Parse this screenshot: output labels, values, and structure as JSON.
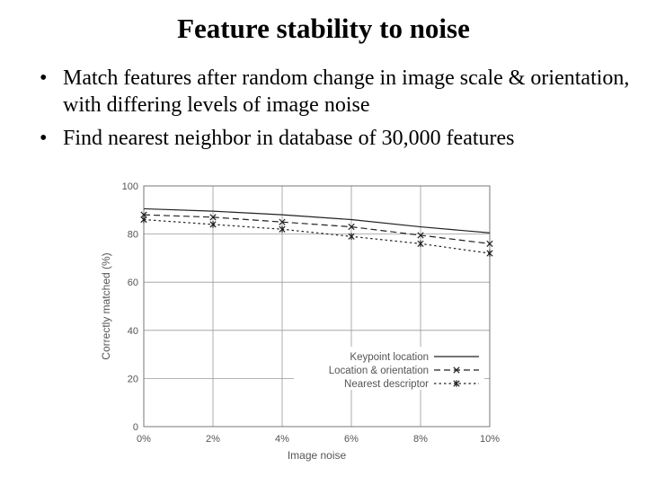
{
  "slide": {
    "title": "Feature stability to noise",
    "bullets": [
      "Match features after random change in image scale & orientation, with differing levels of image noise",
      "Find nearest neighbor in database of 30,000 features"
    ]
  },
  "chart_data": {
    "type": "line",
    "x": [
      0,
      2,
      4,
      6,
      8,
      10
    ],
    "x_tick_labels": [
      "0%",
      "2%",
      "4%",
      "6%",
      "8%",
      "10%"
    ],
    "y_ticks": [
      0,
      20,
      40,
      60,
      80,
      100
    ],
    "xlabel": "Image noise",
    "ylabel": "Correctly matched (%)",
    "xlim": [
      0,
      10
    ],
    "ylim": [
      0,
      100
    ],
    "grid": true,
    "legend_position": "bottom-right",
    "series": [
      {
        "name": "Keypoint location",
        "values": [
          90.5,
          89.5,
          88,
          86,
          83,
          80.5
        ],
        "marker": "none",
        "dash": "solid"
      },
      {
        "name": "Location & orientation",
        "values": [
          88,
          87,
          85,
          83,
          79.5,
          76
        ],
        "marker": "x",
        "dash": "dashed"
      },
      {
        "name": "Nearest descriptor",
        "values": [
          86,
          84,
          82,
          79,
          76,
          72
        ],
        "marker": "star",
        "dash": "dotted"
      }
    ]
  }
}
